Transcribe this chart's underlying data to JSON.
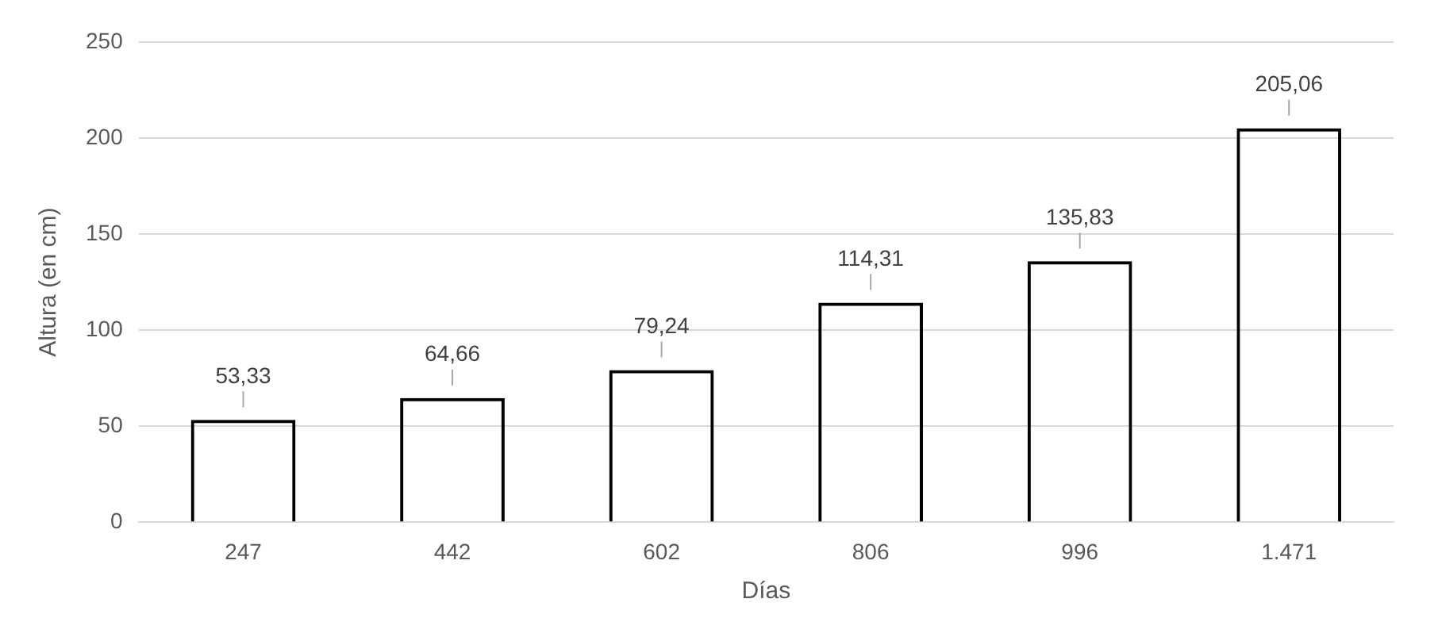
{
  "chart_data": {
    "type": "bar",
    "xlabel": "Días",
    "ylabel": "Altura (en cm)",
    "categories": [
      "247",
      "442",
      "602",
      "806",
      "996",
      "1.471"
    ],
    "values": [
      53.33,
      64.66,
      79.24,
      114.31,
      135.83,
      205.06
    ],
    "value_labels": [
      "53,33",
      "64,66",
      "79,24",
      "114,31",
      "135,83",
      "205,06"
    ],
    "color": "#000000",
    "ylim": [
      0,
      250
    ],
    "yticks": [
      0,
      50,
      100,
      150,
      200,
      250
    ],
    "grid": "y",
    "legend": false
  }
}
